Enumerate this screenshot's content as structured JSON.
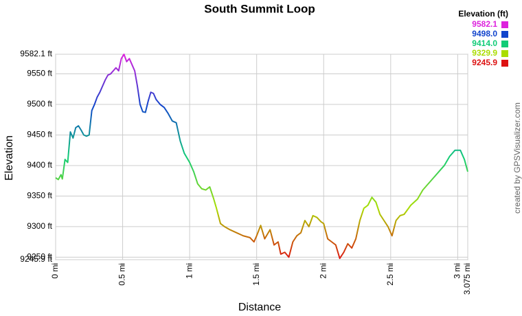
{
  "chart_data": {
    "type": "line",
    "title": "South Summit Loop",
    "xlabel": "Distance",
    "ylabel": "Elevation",
    "credit": "created by GPSVisualizer.com",
    "grid": true,
    "xlim": [
      0,
      3.075
    ],
    "ylim": [
      9245.9,
      9582.1
    ],
    "xticks": [
      {
        "value": 0,
        "label": "0 mi"
      },
      {
        "value": 0.5,
        "label": "0.5 mi"
      },
      {
        "value": 1,
        "label": "1 mi"
      },
      {
        "value": 1.5,
        "label": "1.5 mi"
      },
      {
        "value": 2,
        "label": "2 mi"
      },
      {
        "value": 2.5,
        "label": "2.5 mi"
      },
      {
        "value": 3,
        "label": "3 mi"
      },
      {
        "value": 3.075,
        "label": "3.075 mi"
      }
    ],
    "yticks": [
      {
        "value": 9245.9,
        "label": "9245.9 ft"
      },
      {
        "value": 9250,
        "label": "9250 ft"
      },
      {
        "value": 9300,
        "label": "9300 ft"
      },
      {
        "value": 9350,
        "label": "9350 ft"
      },
      {
        "value": 9400,
        "label": "9400 ft"
      },
      {
        "value": 9450,
        "label": "9450 ft"
      },
      {
        "value": 9500,
        "label": "9500 ft"
      },
      {
        "value": 9550,
        "label": "9550 ft"
      },
      {
        "value": 9582.1,
        "label": "9582.1 ft"
      }
    ],
    "legend": {
      "title": "Elevation (ft)",
      "values": [
        9582.1,
        {
          "value": 9498,
          "label": "9498.0"
        },
        {
          "value": 9414,
          "label": "9414.0"
        },
        9329.9,
        9245.9
      ],
      "colors": [
        "#dd22dd",
        "#1144cc",
        "#11cc77",
        "#aadd00",
        "#dd1111"
      ]
    },
    "x": [
      0,
      0.02,
      0.04,
      0.05,
      0.07,
      0.09,
      0.1,
      0.11,
      0.13,
      0.15,
      0.17,
      0.19,
      0.21,
      0.23,
      0.25,
      0.27,
      0.29,
      0.31,
      0.33,
      0.35,
      0.37,
      0.39,
      0.41,
      0.43,
      0.45,
      0.47,
      0.49,
      0.51,
      0.53,
      0.55,
      0.57,
      0.59,
      0.61,
      0.63,
      0.65,
      0.67,
      0.69,
      0.71,
      0.73,
      0.75,
      0.78,
      0.81,
      0.84,
      0.87,
      0.9,
      0.93,
      0.96,
      1.0,
      1.03,
      1.06,
      1.09,
      1.12,
      1.15,
      1.18,
      1.2,
      1.23,
      1.26,
      1.3,
      1.35,
      1.4,
      1.45,
      1.48,
      1.5,
      1.53,
      1.56,
      1.6,
      1.63,
      1.66,
      1.68,
      1.71,
      1.74,
      1.77,
      1.8,
      1.83,
      1.86,
      1.89,
      1.92,
      1.95,
      1.98,
      2.0,
      2.03,
      2.06,
      2.09,
      2.12,
      2.15,
      2.18,
      2.21,
      2.24,
      2.27,
      2.3,
      2.33,
      2.36,
      2.39,
      2.42,
      2.45,
      2.48,
      2.51,
      2.54,
      2.57,
      2.6,
      2.65,
      2.7,
      2.74,
      2.78,
      2.82,
      2.86,
      2.9,
      2.94,
      2.98,
      3.02,
      3.05,
      3.075
    ],
    "values": [
      9380,
      9377,
      9385,
      9378,
      9410,
      9405,
      9430,
      9455,
      9445,
      9462,
      9465,
      9458,
      9450,
      9448,
      9450,
      9490,
      9500,
      9512,
      9520,
      9530,
      9540,
      9548,
      9550,
      9555,
      9560,
      9555,
      9575,
      9582.1,
      9570,
      9575,
      9565,
      9555,
      9530,
      9500,
      9488,
      9487,
      9505,
      9520,
      9518,
      9508,
      9500,
      9495,
      9485,
      9473,
      9470,
      9440,
      9420,
      9405,
      9390,
      9370,
      9362,
      9360,
      9365,
      9345,
      9330,
      9305,
      9300,
      9295,
      9290,
      9285,
      9282,
      9275,
      9285,
      9302,
      9280,
      9295,
      9270,
      9275,
      9255,
      9258,
      9250,
      9275,
      9285,
      9290,
      9310,
      9300,
      9318,
      9315,
      9308,
      9305,
      9280,
      9275,
      9270,
      9248,
      9258,
      9272,
      9265,
      9280,
      9310,
      9330,
      9335,
      9348,
      9340,
      9320,
      9310,
      9300,
      9285,
      9310,
      9318,
      9320,
      9335,
      9345,
      9360,
      9370,
      9380,
      9390,
      9400,
      9415,
      9425,
      9425,
      9410,
      9390
    ]
  }
}
